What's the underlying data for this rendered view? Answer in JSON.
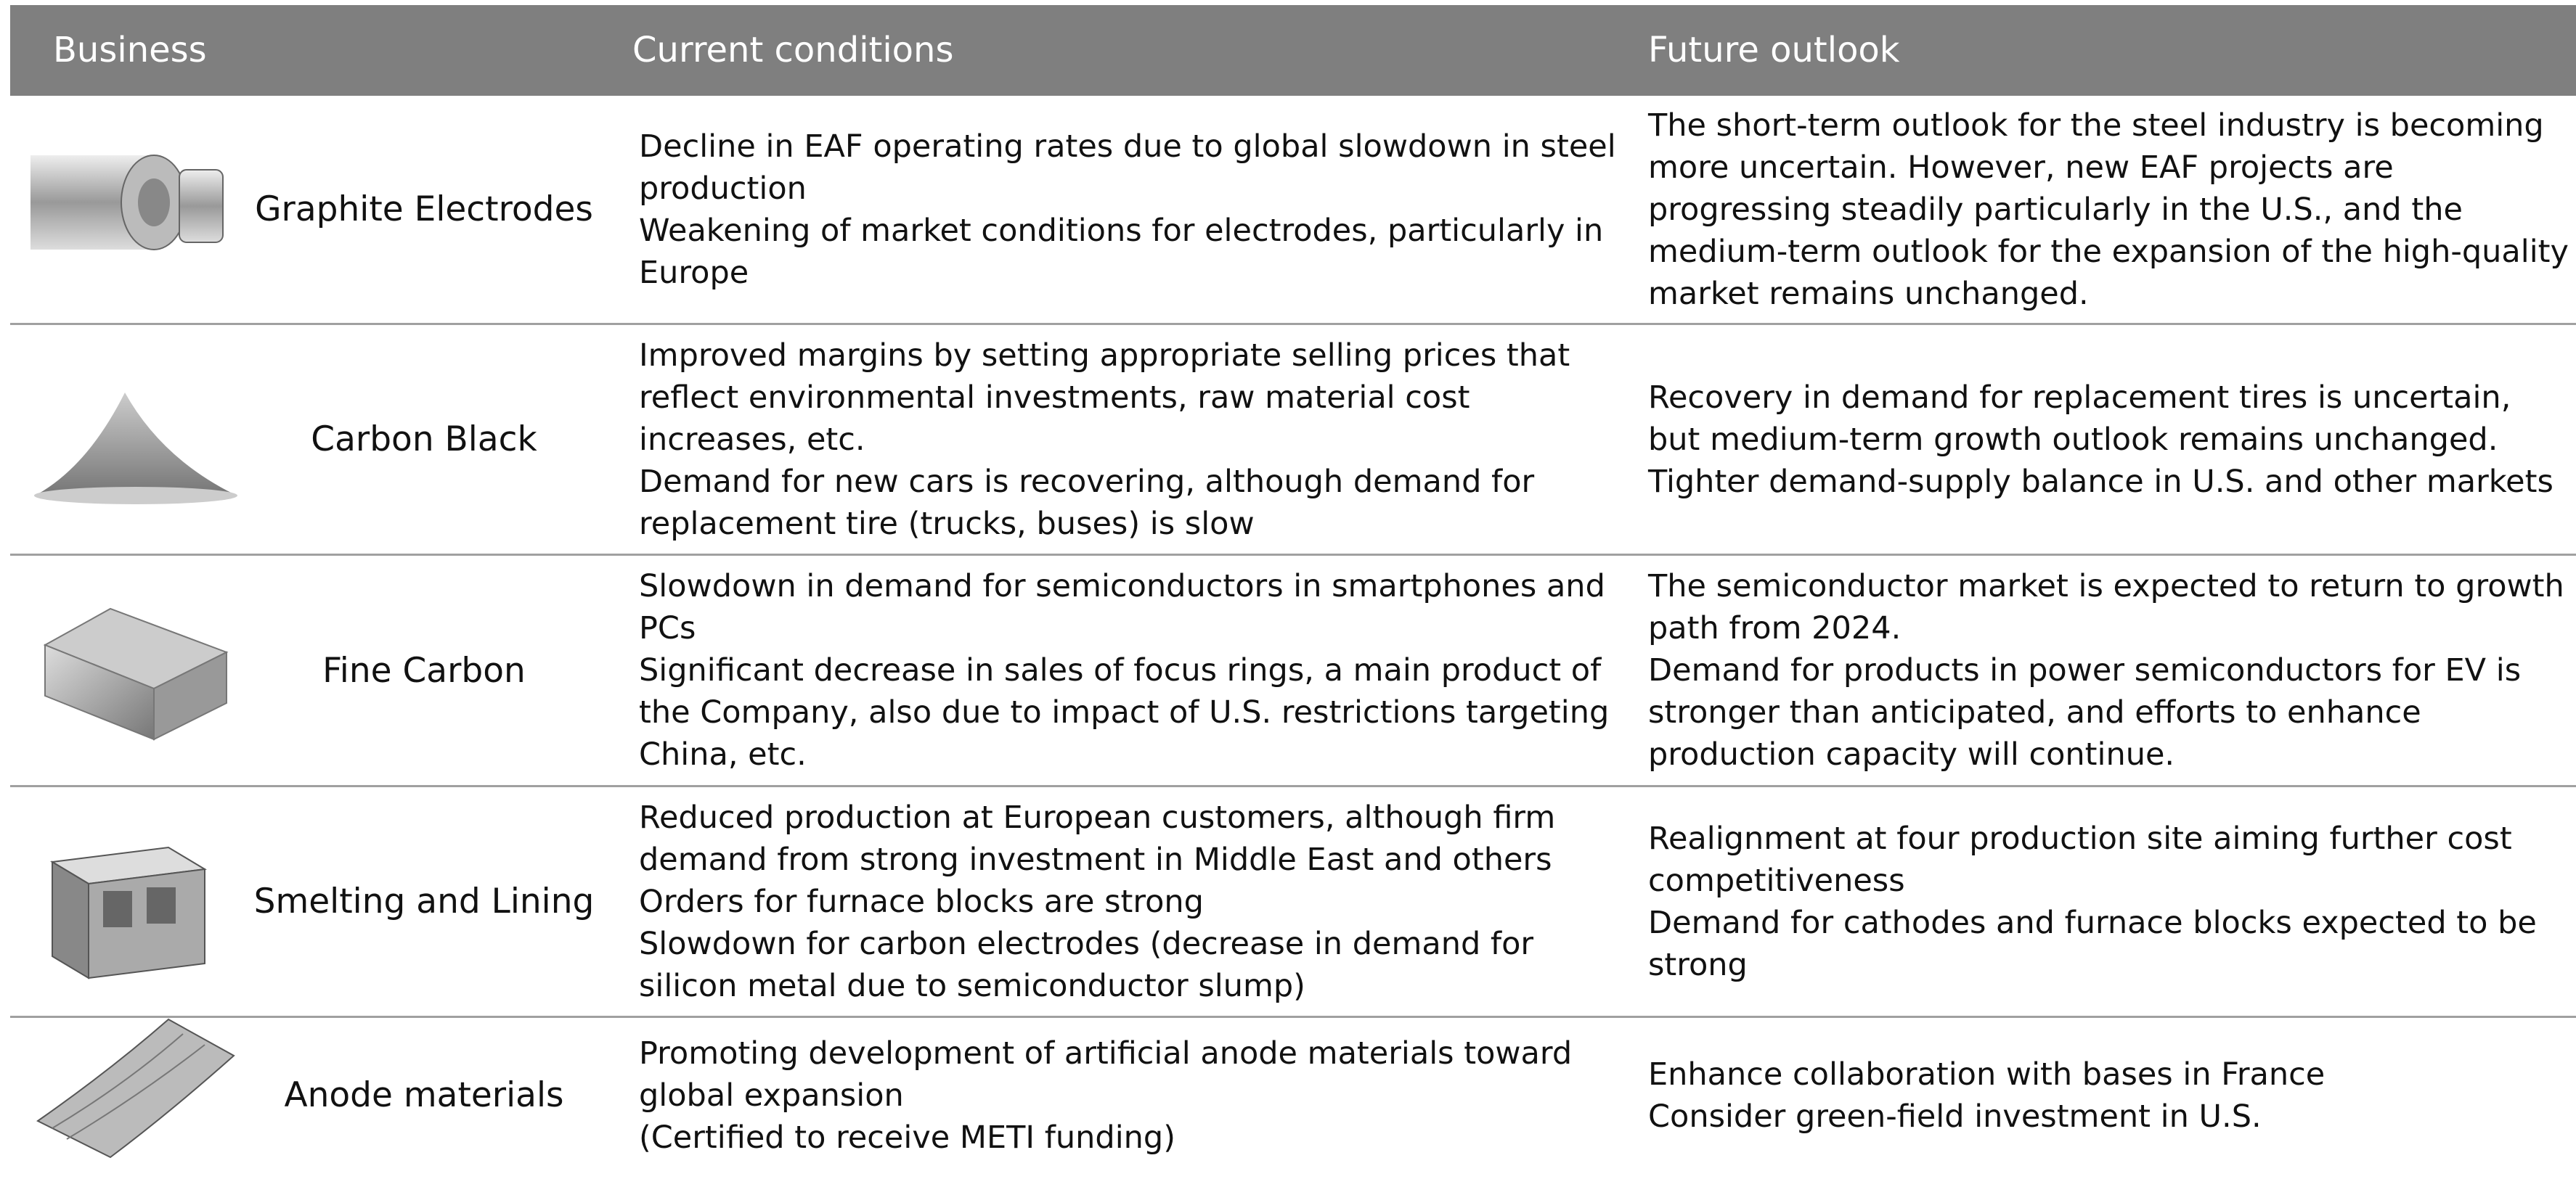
{
  "table": {
    "header": [
      "Business",
      "Current conditions",
      "Future outlook"
    ],
    "rows": [
      {
        "business": "Graphite Electrodes",
        "current": [
          "Decline in EAF operating rates due to global slowdown in steel production",
          "Weakening of market conditions for electrodes, particularly in Europe"
        ],
        "future": [
          "The short-term outlook for the steel industry is becoming more uncertain. However, new EAF projects are progressing steadily particularly in the U.S., and the medium-term outlook for the expansion of the high-quality market remains unchanged."
        ]
      },
      {
        "business": "Carbon Black",
        "current": [
          "Improved margins by setting appropriate selling prices that reflect environmental investments, raw material cost increases, etc.",
          "Demand for new cars is recovering, although demand for replacement tire (trucks, buses) is slow"
        ],
        "future": [
          "Recovery in demand for replacement tires is uncertain, but medium-term growth outlook remains unchanged.",
          "Tighter demand-supply balance in U.S. and other markets"
        ]
      },
      {
        "business": "Fine Carbon",
        "current": [
          "Slowdown in demand for semiconductors in smartphones and PCs",
          "Significant decrease in sales of focus rings, a main product of the Company, also due to impact of U.S. restrictions targeting China, etc."
        ],
        "future": [
          "The semiconductor market is expected to return to growth path from 2024.",
          "Demand for products in power semiconductors for EV is stronger than anticipated, and efforts to enhance production capacity will continue."
        ]
      },
      {
        "business": "Smelting and Lining",
        "current": [
          "Reduced production at European customers, although firm demand from strong investment in Middle East and others",
          "Orders for furnace blocks are strong",
          "Slowdown for carbon electrodes (decrease in demand for silicon metal due to semiconductor slump)"
        ],
        "future": [
          "Realignment at four production site aiming further cost competitiveness",
          "Demand for cathodes and furnace blocks expected to be strong"
        ]
      },
      {
        "business": "Anode materials",
        "current": [
          "Promoting development of artificial anode materials toward global expansion",
          "(Certified to receive METI funding)"
        ],
        "future": [
          "Enhance collaboration with bases in France",
          "Consider green-field investment in U.S."
        ]
      }
    ]
  }
}
